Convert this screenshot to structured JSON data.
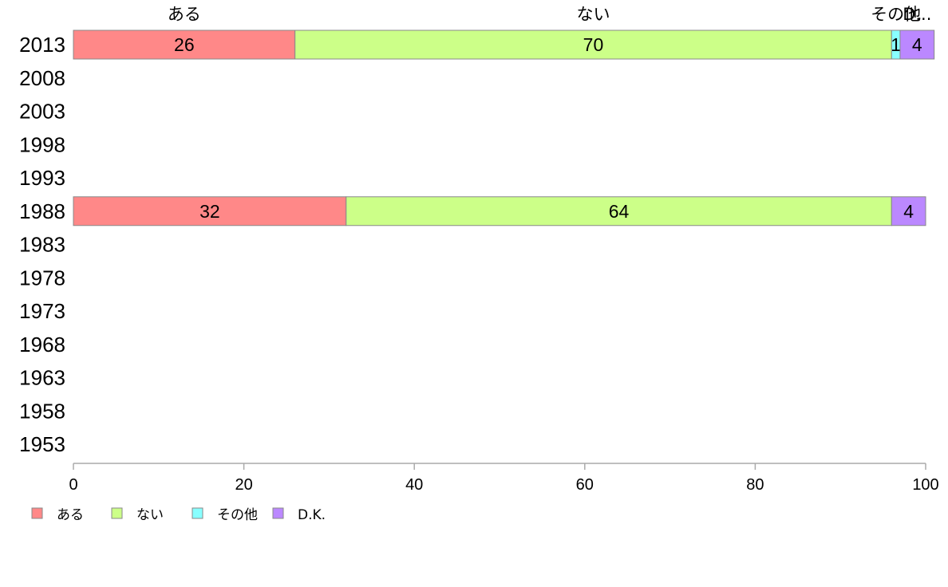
{
  "chart_data": {
    "type": "bar",
    "orientation": "horizontal",
    "stacked": true,
    "categories": [
      "2013",
      "2008",
      "2003",
      "1998",
      "1993",
      "1988",
      "1983",
      "1978",
      "1973",
      "1968",
      "1963",
      "1958",
      "1953"
    ],
    "series": [
      {
        "name": "ある",
        "color": "#ff8888",
        "values": [
          26,
          null,
          null,
          null,
          null,
          32,
          null,
          null,
          null,
          null,
          null,
          null,
          null
        ]
      },
      {
        "name": "ない",
        "color": "#ccff88",
        "values": [
          70,
          null,
          null,
          null,
          null,
          64,
          null,
          null,
          null,
          null,
          null,
          null,
          null
        ]
      },
      {
        "name": "その他",
        "color": "#88ffff",
        "values": [
          1,
          null,
          null,
          null,
          null,
          0,
          null,
          null,
          null,
          null,
          null,
          null,
          null
        ]
      },
      {
        "name": "D.K.",
        "color": "#bb88ff",
        "values": [
          4,
          null,
          null,
          null,
          null,
          4,
          null,
          null,
          null,
          null,
          null,
          null,
          null
        ]
      }
    ],
    "top_labels": [
      "ある",
      "ない",
      "その他",
      "D..."
    ],
    "xlim": [
      0,
      100
    ],
    "xticks": [
      0,
      20,
      40,
      60,
      80,
      100
    ],
    "xlabel": "",
    "ylabel": "",
    "grid": false,
    "legend": {
      "position": "bottom-left"
    }
  }
}
